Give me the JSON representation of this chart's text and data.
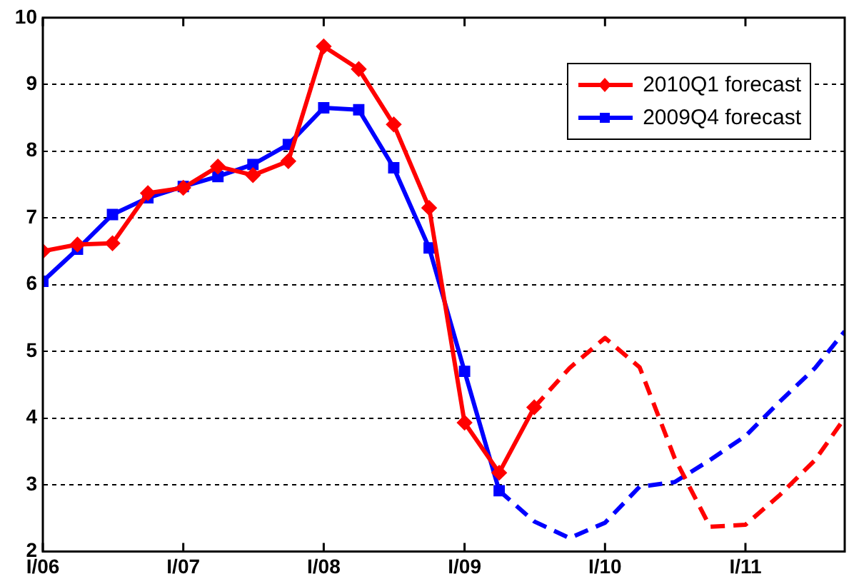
{
  "chart_data": {
    "type": "line",
    "legend": "top right",
    "grid": "y",
    "xlim": [
      "2006-01-01",
      "2011-09-16"
    ],
    "xticks": [
      {
        "value": "2006-01",
        "label": "I/06"
      },
      {
        "value": "2007-01",
        "label": "I/07"
      },
      {
        "value": "2008-01",
        "label": "I/08"
      },
      {
        "value": "2009-01",
        "label": "I/09"
      },
      {
        "value": "2010-01",
        "label": "I/10"
      },
      {
        "value": "2011-01",
        "label": "I/11"
      }
    ],
    "ylim": [
      2,
      10
    ],
    "yticks": [
      2,
      3,
      4,
      5,
      6,
      7,
      8,
      9,
      10
    ],
    "series": [
      {
        "name": "2010Q1 forecast",
        "color": "#ff0000",
        "marker": "diamond",
        "line_style": "solid",
        "x": [
          "2006-01",
          "2006-04",
          "2006-07",
          "2006-10",
          "2007-01",
          "2007-04",
          "2007-07",
          "2007-10",
          "2008-01",
          "2008-04",
          "2008-07",
          "2008-10",
          "2009-01",
          "2009-04",
          "2009-07"
        ],
        "values": [
          6.5,
          6.6,
          6.62,
          7.37,
          7.45,
          7.77,
          7.64,
          7.85,
          9.57,
          9.23,
          8.4,
          7.15,
          3.93,
          3.18,
          4.16
        ]
      },
      {
        "name": "2009Q4 forecast",
        "color": "#0000ff",
        "marker": "square",
        "line_style": "solid",
        "x": [
          "2006-01",
          "2006-04",
          "2006-07",
          "2006-10",
          "2007-01",
          "2007-04",
          "2007-07",
          "2007-10",
          "2008-01",
          "2008-04",
          "2008-07",
          "2008-10",
          "2009-01",
          "2009-04"
        ],
        "values": [
          6.05,
          6.53,
          7.05,
          7.3,
          7.47,
          7.62,
          7.8,
          8.1,
          8.65,
          8.62,
          7.75,
          6.55,
          4.7,
          2.91
        ]
      },
      {
        "color": "#ff0000",
        "marker": "none",
        "line_style": "dashed",
        "x": [
          "2009-07",
          "2009-10",
          "2010-01",
          "2010-04",
          "2010-07",
          "2010-10",
          "2011-01",
          "2011-04",
          "2011-07",
          "2011-09-16"
        ],
        "values": [
          4.16,
          4.75,
          5.2,
          4.76,
          3.4,
          2.37,
          2.4,
          2.85,
          3.37,
          4.0
        ]
      },
      {
        "color": "#0000ff",
        "marker": "none",
        "line_style": "dashed",
        "x": [
          "2009-04",
          "2009-07",
          "2009-10",
          "2010-01",
          "2010-04",
          "2010-07",
          "2010-10",
          "2011-01",
          "2011-04",
          "2011-07",
          "2011-09-16"
        ],
        "values": [
          2.91,
          2.45,
          2.2,
          2.43,
          2.97,
          3.04,
          3.37,
          3.73,
          4.25,
          4.75,
          5.3
        ]
      }
    ]
  }
}
